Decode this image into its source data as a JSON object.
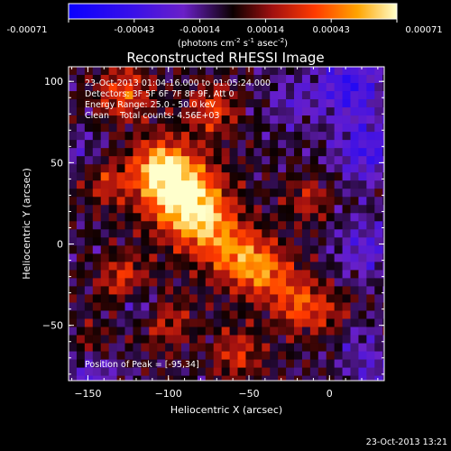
{
  "chart_data": {
    "type": "heatmap",
    "title": "Reconstructed RHESSI Image",
    "xlabel": "Heliocentric X (arcsec)",
    "ylabel": "Heliocentric Y (arcsec)",
    "xlim": [
      -162,
      34
    ],
    "ylim": [
      -84,
      109
    ],
    "xticks": [
      -150,
      -100,
      -50,
      0
    ],
    "yticks": [
      -50,
      0,
      50,
      100
    ],
    "colorbar": {
      "min": -0.00071,
      "max": 0.00071,
      "ticks": [
        "-0.00071",
        "-0.00043",
        "-0.00014",
        "0.00014",
        "0.00043",
        "0.00071"
      ],
      "unit_base": "(photons cm",
      "unit_exp1": "-2",
      "unit_mid": " s",
      "unit_exp2": "-1",
      "unit_tail": " asec",
      "unit_exp3": "-2",
      "unit_close": ")"
    },
    "annotations": {
      "time_range": "23-Oct-2013 01:04:16.000 to 01:05:24.000",
      "detectors": "Detectors: 3F 5F 6F 7F 8F 9F, Att 0",
      "energy_range": "Energy Range: 25.0 - 50.0 keV",
      "clean_counts": "Clean    Total counts: 4.56E+03",
      "peak": "Position of Peak = [-95,34]"
    },
    "peak": [
      -95,
      34
    ],
    "blobs": [
      {
        "x": -95,
        "y": 34,
        "amp": 0.00071,
        "s": 16
      },
      {
        "x": -108,
        "y": 50,
        "amp": 0.0005,
        "s": 12
      },
      {
        "x": -80,
        "y": 15,
        "amp": 0.00045,
        "s": 14
      },
      {
        "x": -60,
        "y": -5,
        "amp": 0.00042,
        "s": 13
      },
      {
        "x": -42,
        "y": -15,
        "amp": 0.0004,
        "s": 12
      },
      {
        "x": -20,
        "y": -35,
        "amp": 0.0004,
        "s": 12
      },
      {
        "x": 5,
        "y": -45,
        "amp": 0.00032,
        "s": 10
      },
      {
        "x": -130,
        "y": 95,
        "amp": 0.00038,
        "s": 12
      },
      {
        "x": -75,
        "y": 85,
        "amp": 0.00035,
        "s": 11
      },
      {
        "x": -140,
        "y": 40,
        "amp": 0.00028,
        "s": 10
      },
      {
        "x": -130,
        "y": -20,
        "amp": 0.00035,
        "s": 11
      },
      {
        "x": -105,
        "y": -45,
        "amp": 0.00028,
        "s": 12
      },
      {
        "x": -60,
        "y": -65,
        "amp": 0.0003,
        "s": 11
      },
      {
        "x": -150,
        "y": -60,
        "amp": 0.00022,
        "s": 9
      },
      {
        "x": -15,
        "y": 30,
        "amp": 0.00025,
        "s": 10
      },
      {
        "x": 10,
        "y": 100,
        "amp": -0.0004,
        "s": 14
      },
      {
        "x": 20,
        "y": 60,
        "amp": -0.00035,
        "s": 14
      },
      {
        "x": -25,
        "y": 90,
        "amp": -0.00018,
        "s": 12
      },
      {
        "x": 20,
        "y": 0,
        "amp": -0.00025,
        "s": 14
      },
      {
        "x": -120,
        "y": -35,
        "amp": -0.0003,
        "s": 9
      },
      {
        "x": 10,
        "y": -50,
        "amp": -0.0003,
        "s": 10
      },
      {
        "x": -150,
        "y": -75,
        "amp": -0.00025,
        "s": 12
      },
      {
        "x": 25,
        "y": -75,
        "amp": -0.0002,
        "s": 12
      },
      {
        "x": -155,
        "y": 60,
        "amp": -0.00015,
        "s": 9
      }
    ]
  },
  "footer": {
    "timestamp": "23-Oct-2013 13:21"
  }
}
